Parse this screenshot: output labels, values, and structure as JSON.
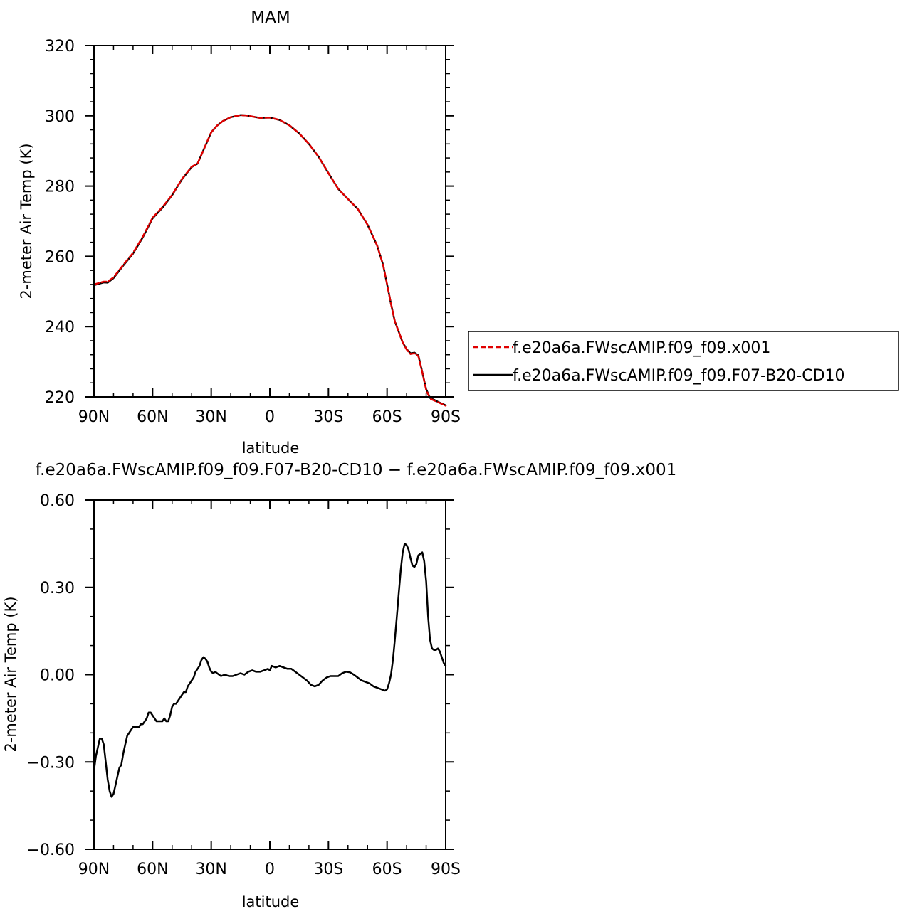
{
  "chart_data": [
    {
      "type": "line",
      "title": "MAM",
      "xlabel": "latitude",
      "ylabel": "2-meter Air Temp (K)",
      "xlim": [
        90,
        -90
      ],
      "ylim": [
        220,
        320
      ],
      "x_ticks": [
        90,
        60,
        30,
        0,
        -30,
        -60,
        -90
      ],
      "x_tick_labels": [
        "90N",
        "60N",
        "30N",
        "0",
        "30S",
        "60S",
        "90S"
      ],
      "y_ticks": [
        220,
        240,
        260,
        280,
        300,
        320
      ],
      "y_tick_labels": [
        "220",
        "240",
        "260",
        "280",
        "300",
        "320"
      ],
      "legend_position": "right",
      "series": [
        {
          "name": "f.e20a6a.FWscAMIP.f09_f09.x001",
          "color": "#e00000",
          "dash": "dashed",
          "x": [
            90,
            85,
            83,
            80,
            75,
            70,
            65,
            60,
            55,
            50,
            45,
            40,
            37,
            34,
            30,
            27,
            24,
            20,
            15,
            12,
            10,
            5,
            0,
            -5,
            -10,
            -15,
            -20,
            -25,
            -30,
            -35,
            -40,
            -45,
            -50,
            -55,
            -58,
            -60,
            -62,
            -64,
            -66,
            -68,
            -70,
            -72,
            -74,
            -76,
            -78,
            -80,
            -82,
            -84,
            -86,
            -88,
            -90
          ],
          "values": [
            252,
            252.8,
            252.8,
            254,
            257.6,
            261,
            265.6,
            271,
            274,
            277.5,
            282,
            285.5,
            286.4,
            290.2,
            295.3,
            297.2,
            298.5,
            299.6,
            300.2,
            300.1,
            299.9,
            299.4,
            299.5,
            298.8,
            297.3,
            295,
            292,
            288.3,
            283.7,
            279.2,
            276.3,
            273.5,
            269,
            263,
            257.5,
            252,
            246.5,
            241.5,
            238.5,
            235.5,
            233.5,
            232.2,
            232.4,
            231.6,
            227,
            222,
            219.5,
            219,
            218.5,
            218,
            217.5
          ]
        },
        {
          "name": "f.e20a6a.FWscAMIP.f09_f09.F07-B20-CD10",
          "color": "#000000",
          "dash": "solid",
          "x": [
            90,
            85,
            83,
            80,
            75,
            70,
            65,
            60,
            55,
            50,
            45,
            40,
            37,
            34,
            30,
            27,
            24,
            20,
            15,
            12,
            10,
            5,
            0,
            -5,
            -10,
            -15,
            -20,
            -25,
            -30,
            -35,
            -40,
            -45,
            -50,
            -55,
            -58,
            -60,
            -62,
            -64,
            -66,
            -68,
            -70,
            -72,
            -74,
            -76,
            -78,
            -80,
            -82,
            -84,
            -86,
            -88,
            -90
          ],
          "values": [
            251.8,
            252.6,
            252.5,
            253.8,
            257.4,
            260.8,
            265.4,
            270.8,
            273.8,
            277.4,
            281.9,
            285.4,
            286.4,
            290.2,
            295.3,
            297.2,
            298.5,
            299.6,
            300.2,
            300.1,
            299.9,
            299.4,
            299.5,
            298.8,
            297.3,
            295,
            292,
            288.3,
            283.7,
            279.2,
            276.3,
            273.5,
            269,
            263,
            257.5,
            252,
            246.5,
            241.5,
            238.5,
            235.5,
            233.6,
            232.4,
            232.6,
            231.8,
            227.1,
            222.2,
            219.7,
            219.2,
            218.6,
            218.1,
            217.6
          ]
        }
      ]
    },
    {
      "type": "line",
      "title": "f.e20a6a.FWscAMIP.f09_f09.F07-B20-CD10 − f.e20a6a.FWscAMIP.f09_f09.x001",
      "xlabel": "latitude",
      "ylabel": "2-meter Air Temp (K)",
      "xlim": [
        90,
        -90
      ],
      "ylim": [
        -0.6,
        0.6
      ],
      "x_ticks": [
        90,
        60,
        30,
        0,
        -30,
        -60,
        -90
      ],
      "x_tick_labels": [
        "90N",
        "60N",
        "30N",
        "0",
        "30S",
        "60S",
        "90S"
      ],
      "y_ticks": [
        -0.6,
        -0.3,
        0,
        0.3,
        0.6
      ],
      "y_tick_labels": [
        "−0.60",
        "−0.30",
        "0.00",
        "0.30",
        "0.60"
      ],
      "series": [
        {
          "color": "#000000",
          "dash": "solid",
          "x": [
            90,
            89,
            87,
            86,
            85,
            84,
            83,
            82,
            81,
            80,
            79,
            78,
            77,
            76,
            75,
            74,
            73,
            72,
            71,
            70,
            69,
            68,
            67,
            66,
            65,
            64,
            63,
            62,
            61,
            60,
            59,
            58,
            57,
            56,
            55,
            54,
            53,
            52,
            51,
            50,
            49,
            48,
            47,
            46,
            45,
            44,
            43,
            42,
            41,
            40,
            39,
            38,
            37,
            36,
            35,
            34,
            33,
            32,
            31,
            30,
            29,
            28,
            27,
            26,
            25,
            23,
            21,
            19,
            17,
            15,
            13,
            11,
            9,
            7,
            5,
            3,
            1,
            0,
            -1,
            -3,
            -5,
            -7,
            -9,
            -11,
            -13,
            -15,
            -17,
            -19,
            -21,
            -23,
            -25,
            -27,
            -29,
            -31,
            -33,
            -35,
            -37,
            -39,
            -41,
            -43,
            -45,
            -47,
            -49,
            -51,
            -53,
            -55,
            -57,
            -59,
            -60,
            -61,
            -62,
            -63,
            -64,
            -65,
            -66,
            -67,
            -68,
            -69,
            -70,
            -71,
            -72,
            -73,
            -74,
            -75,
            -76,
            -77,
            -78,
            -79,
            -80,
            -81,
            -82,
            -83,
            -84,
            -85,
            -86,
            -87,
            -88,
            -89,
            -90
          ],
          "values": [
            -0.33,
            -0.28,
            -0.22,
            -0.22,
            -0.24,
            -0.3,
            -0.36,
            -0.4,
            -0.42,
            -0.41,
            -0.38,
            -0.35,
            -0.32,
            -0.31,
            -0.27,
            -0.24,
            -0.21,
            -0.2,
            -0.19,
            -0.18,
            -0.18,
            -0.18,
            -0.18,
            -0.17,
            -0.17,
            -0.16,
            -0.15,
            -0.13,
            -0.13,
            -0.14,
            -0.15,
            -0.16,
            -0.16,
            -0.16,
            -0.16,
            -0.15,
            -0.16,
            -0.16,
            -0.14,
            -0.11,
            -0.1,
            -0.1,
            -0.09,
            -0.08,
            -0.07,
            -0.06,
            -0.06,
            -0.04,
            -0.03,
            -0.02,
            -0.01,
            0.01,
            0.02,
            0.03,
            0.05,
            0.06,
            0.055,
            0.045,
            0.025,
            0.01,
            0.005,
            0.01,
            0.005,
            0.0,
            -0.005,
            0.0,
            -0.005,
            -0.005,
            0.0,
            0.005,
            0.0,
            0.01,
            0.015,
            0.01,
            0.01,
            0.015,
            0.02,
            0.015,
            0.03,
            0.025,
            0.03,
            0.025,
            0.02,
            0.02,
            0.01,
            0.0,
            -0.01,
            -0.02,
            -0.035,
            -0.04,
            -0.035,
            -0.02,
            -0.01,
            -0.005,
            -0.005,
            -0.005,
            0.005,
            0.01,
            0.008,
            0.0,
            -0.01,
            -0.02,
            -0.025,
            -0.03,
            -0.04,
            -0.045,
            -0.05,
            -0.055,
            -0.05,
            -0.03,
            0.0,
            0.05,
            0.12,
            0.2,
            0.28,
            0.36,
            0.42,
            0.45,
            0.445,
            0.43,
            0.4,
            0.375,
            0.37,
            0.38,
            0.41,
            0.415,
            0.42,
            0.39,
            0.32,
            0.2,
            0.12,
            0.09,
            0.085,
            0.085,
            0.09,
            0.08,
            0.06,
            0.04,
            0.03
          ]
        }
      ]
    }
  ]
}
